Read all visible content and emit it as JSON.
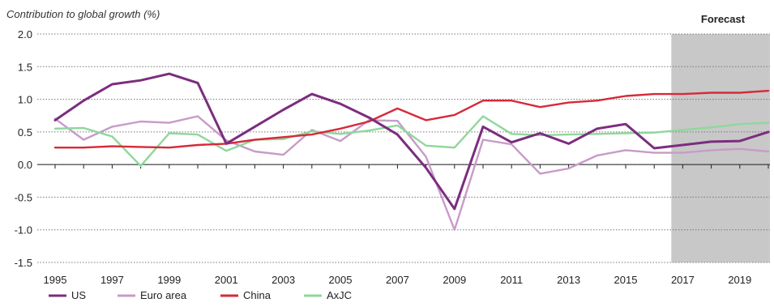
{
  "chart_data": {
    "type": "line",
    "ylabel": "Contribution to global growth (%)",
    "forecast_label": "Forecast",
    "forecast_start_year": 2016.6,
    "ylim": [
      -1.5,
      2.0
    ],
    "yticks": [
      "2.0",
      "1.5",
      "1.0",
      "0.5",
      "0.0",
      "-0.5",
      "-1.0",
      "-1.5"
    ],
    "ytick_values": [
      2.0,
      1.5,
      1.0,
      0.5,
      0.0,
      -0.5,
      -1.0,
      -1.5
    ],
    "xlim": [
      1995,
      2020
    ],
    "xtick_labels": [
      "1995",
      "1997",
      "1999",
      "2001",
      "2003",
      "2005",
      "2007",
      "2009",
      "2011",
      "2013",
      "2015",
      "2017",
      "2019"
    ],
    "xtick_values": [
      1995,
      1997,
      1999,
      2001,
      2003,
      2005,
      2007,
      2009,
      2011,
      2013,
      2015,
      2017,
      2019
    ],
    "x": [
      1995,
      1996,
      1997,
      1998,
      1999,
      2000,
      2001,
      2002,
      2003,
      2004,
      2005,
      2006,
      2007,
      2008,
      2009,
      2010,
      2011,
      2012,
      2013,
      2014,
      2015,
      2016,
      2017,
      2018,
      2019,
      2020
    ],
    "series": [
      {
        "name": "US",
        "color": "#7b2d7f",
        "values": [
          0.68,
          0.98,
          1.23,
          1.29,
          1.39,
          1.25,
          0.32,
          0.58,
          0.84,
          1.08,
          0.93,
          0.72,
          0.46,
          -0.05,
          -0.68,
          0.58,
          0.34,
          0.48,
          0.32,
          0.55,
          0.62,
          0.25,
          0.3,
          0.35,
          0.36,
          0.5
        ]
      },
      {
        "name": "Euro area",
        "color": "#c79bc8",
        "values": [
          0.7,
          0.38,
          0.58,
          0.66,
          0.64,
          0.74,
          0.37,
          0.2,
          0.15,
          0.53,
          0.36,
          0.68,
          0.67,
          0.12,
          -1.0,
          0.38,
          0.31,
          -0.14,
          -0.06,
          0.14,
          0.22,
          0.18,
          0.18,
          0.22,
          0.24,
          0.2
        ]
      },
      {
        "name": "China",
        "color": "#d62a3a",
        "values": [
          0.26,
          0.26,
          0.28,
          0.27,
          0.26,
          0.3,
          0.32,
          0.38,
          0.42,
          0.46,
          0.55,
          0.66,
          0.86,
          0.68,
          0.76,
          0.98,
          0.98,
          0.88,
          0.95,
          0.98,
          1.05,
          1.08,
          1.08,
          1.1,
          1.1,
          1.13
        ]
      },
      {
        "name": "AxJC",
        "color": "#8fd79b",
        "values": [
          0.55,
          0.56,
          0.43,
          -0.02,
          0.48,
          0.46,
          0.21,
          0.38,
          0.39,
          0.51,
          0.47,
          0.52,
          0.6,
          0.29,
          0.26,
          0.74,
          0.47,
          0.45,
          0.46,
          0.47,
          0.48,
          0.49,
          0.53,
          0.57,
          0.62,
          0.64
        ]
      }
    ],
    "legend": [
      "US",
      "Euro area",
      "China",
      "AxJC"
    ],
    "legend_placement": "bottom-left",
    "grid": "horizontal dotted"
  }
}
